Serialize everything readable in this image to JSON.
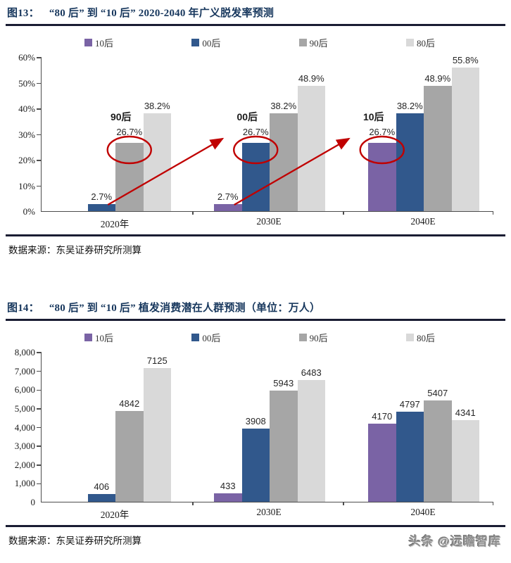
{
  "page": {
    "watermark": "头条 @远瞻智库"
  },
  "colors": {
    "title_navy": "#17375D",
    "rule": "#1A1D33",
    "annotation_red": "#C00000",
    "axis": "#4d4d4d"
  },
  "chart_data": [
    {
      "type": "bar",
      "figure_label": "图13：",
      "title": "“80 后” 到 “10 后” 2020-2040 年广义脱发率预测",
      "categories": [
        "2020年",
        "2030E",
        "2040E"
      ],
      "series": [
        {
          "name": "10后",
          "color": "#7A63A5",
          "values": [
            null,
            2.7,
            26.7
          ]
        },
        {
          "name": "00后",
          "color": "#31588C",
          "values": [
            2.7,
            26.7,
            38.2
          ]
        },
        {
          "name": "90后",
          "color": "#A6A6A6",
          "values": [
            26.7,
            38.2,
            48.9
          ]
        },
        {
          "name": "80后",
          "color": "#D9D9D9",
          "values": [
            38.2,
            48.9,
            55.8
          ]
        }
      ],
      "ylim": [
        0,
        60
      ],
      "ytick_step": 10,
      "ytick_suffix": "%",
      "value_suffix": "%",
      "grid": false,
      "legend_position": "top",
      "annotations": {
        "circled": [
          {
            "category": "2020年",
            "series": "90后",
            "label": "90后",
            "value": 26.7
          },
          {
            "category": "2030E",
            "series": "00后",
            "label": "00后",
            "value": 26.7
          },
          {
            "category": "2040E",
            "series": "10后",
            "label": "10后",
            "value": 26.7
          }
        ],
        "arrows": [
          {
            "from_category": "2020年",
            "from_series": "00后",
            "to_circled": 1
          },
          {
            "from_category": "2030E",
            "from_series": "10后",
            "to_circled": 2
          }
        ]
      },
      "source": "数据来源：东吴证券研究所测算"
    },
    {
      "type": "bar",
      "figure_label": "图14：",
      "title": "“80 后” 到 “10 后” 植发消费潜在人群预测（单位：万人）",
      "categories": [
        "2020年",
        "2030E",
        "2040E"
      ],
      "series": [
        {
          "name": "10后",
          "color": "#7A63A5",
          "values": [
            null,
            433,
            4170
          ]
        },
        {
          "name": "00后",
          "color": "#31588C",
          "values": [
            406,
            3908,
            4797
          ]
        },
        {
          "name": "90后",
          "color": "#A6A6A6",
          "values": [
            4842,
            5943,
            5407
          ]
        },
        {
          "name": "80后",
          "color": "#D9D9D9",
          "values": [
            7125,
            6483,
            4341
          ]
        }
      ],
      "ylim": [
        0,
        8000
      ],
      "ytick_step": 1000,
      "ytick_suffix": "",
      "value_suffix": "",
      "grid": false,
      "legend_position": "top",
      "annotations": null,
      "source": "数据来源：东吴证券研究所测算"
    }
  ]
}
